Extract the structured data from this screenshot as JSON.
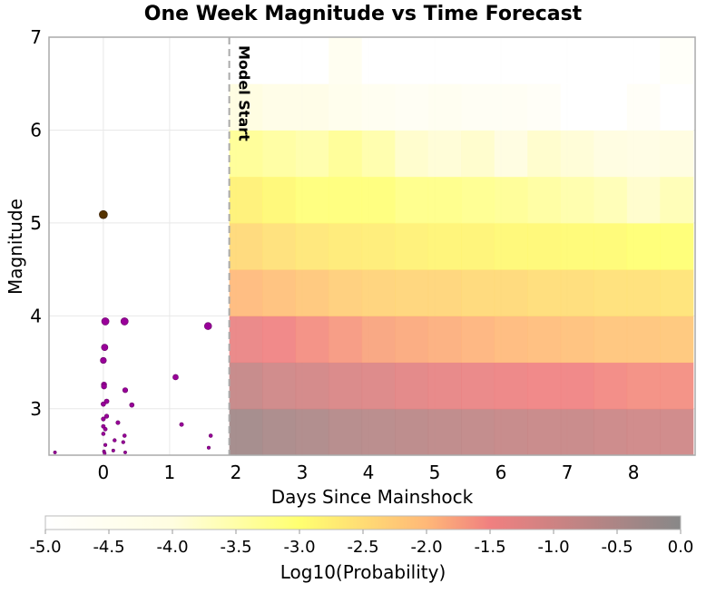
{
  "chart_data": {
    "type": "heatmap",
    "title": "One Week Magnitude vs Time Forecast",
    "xlabel": "Days Since Mainshock",
    "ylabel": "Magnitude",
    "xlim": [
      -0.82,
      8.93
    ],
    "ylim": [
      2.5,
      7
    ],
    "xticks": [
      "0",
      "1",
      "2",
      "3",
      "4",
      "5",
      "6",
      "7",
      "8"
    ],
    "yticks": [
      "3",
      "4",
      "5",
      "6",
      "7"
    ],
    "grid": true,
    "annotation": {
      "label": "Model Start",
      "x": 1.9
    },
    "heatmap": {
      "x_start": 1.9,
      "x_bin_width": 0.5,
      "mag_bins": [
        2.5,
        3.0,
        3.5,
        4.0,
        4.5,
        5.0,
        5.5,
        6.0,
        6.5
      ],
      "mag_bin_width": 0.5,
      "log10_probability": [
        [
          -0.35,
          -0.45,
          -0.5,
          -0.6,
          -0.65,
          -0.7,
          -0.75,
          -0.8,
          -0.85,
          -0.88,
          -0.9,
          -0.95,
          -1.0,
          -1.0
        ],
        [
          -0.85,
          -1.0,
          -1.05,
          -1.15,
          -1.2,
          -1.3,
          -1.35,
          -1.4,
          -1.45,
          -1.5,
          -1.5,
          -1.55,
          -1.6,
          -1.6
        ],
        [
          -1.4,
          -1.5,
          -1.6,
          -1.7,
          -1.8,
          -1.85,
          -1.9,
          -1.95,
          -2.0,
          -2.05,
          -2.1,
          -2.15,
          -2.15,
          -2.2
        ],
        [
          -2.0,
          -2.1,
          -2.2,
          -2.3,
          -2.35,
          -2.4,
          -2.4,
          -2.45,
          -2.45,
          -2.5,
          -2.5,
          -2.55,
          -2.55,
          -2.6
        ],
        [
          -2.45,
          -2.55,
          -2.65,
          -2.7,
          -2.75,
          -2.8,
          -2.85,
          -2.85,
          -2.9,
          -2.9,
          -2.95,
          -2.95,
          -3.0,
          -3.0
        ],
        [
          -2.8,
          -2.9,
          -3.05,
          -3.05,
          -3.05,
          -3.2,
          -3.2,
          -3.25,
          -3.3,
          -3.4,
          -3.5,
          -3.6,
          -3.8,
          -3.6
        ],
        [
          -3.3,
          -3.4,
          -3.5,
          -3.3,
          -3.5,
          -3.8,
          -3.9,
          -3.8,
          -4.0,
          -3.8,
          -3.9,
          -4.0,
          -4.1,
          -4.0
        ],
        [
          -4.0,
          -4.2,
          -4.2,
          -4.4,
          -4.5,
          -4.6,
          -4.5,
          -4.6,
          -4.6,
          -4.7,
          -5.0,
          -5.0,
          -4.7,
          -5.0
        ],
        [
          -5.0,
          -5.0,
          -5.0,
          -4.5,
          -5.0,
          -5.0,
          -5.0,
          -5.0,
          -5.0,
          -5.0,
          -5.0,
          -5.0,
          -5.0,
          -4.8
        ]
      ]
    },
    "mainshock": {
      "x": 0.0,
      "y": 5.09,
      "color": "#553300"
    },
    "aftershocks": {
      "color": "#990099",
      "points": [
        [
          0.03,
          3.94
        ],
        [
          0.32,
          3.94
        ],
        [
          1.58,
          3.89
        ],
        [
          0.02,
          3.66
        ],
        [
          0.0,
          3.52
        ],
        [
          1.09,
          3.34
        ],
        [
          0.01,
          3.26
        ],
        [
          0.01,
          3.24
        ],
        [
          0.33,
          3.2
        ],
        [
          0.05,
          3.08
        ],
        [
          0.0,
          3.05
        ],
        [
          0.43,
          3.04
        ],
        [
          0.05,
          2.92
        ],
        [
          0.0,
          2.89
        ],
        [
          0.22,
          2.85
        ],
        [
          1.18,
          2.83
        ],
        [
          0.0,
          2.81
        ],
        [
          0.03,
          2.78
        ],
        [
          0.0,
          2.73
        ],
        [
          0.32,
          2.71
        ],
        [
          1.62,
          2.71
        ],
        [
          0.17,
          2.66
        ],
        [
          0.3,
          2.64
        ],
        [
          0.03,
          2.61
        ],
        [
          1.59,
          2.58
        ],
        [
          0.15,
          2.55
        ],
        [
          0.01,
          2.54
        ],
        [
          0.33,
          2.53
        ],
        [
          -0.73,
          2.53
        ],
        [
          0.02,
          2.52
        ]
      ]
    },
    "colorbar": {
      "label": "Log10(Probability)",
      "range": [
        -5.0,
        0.0
      ],
      "ticks": [
        "-5.0",
        "-4.5",
        "-4.0",
        "-3.5",
        "-3.0",
        "-2.5",
        "-2.0",
        "-1.5",
        "-1.0",
        "-0.5",
        "0.0"
      ],
      "stops": [
        [
          -5.0,
          "#ffffff"
        ],
        [
          -4.0,
          "#fffde0"
        ],
        [
          -3.0,
          "#ffff70"
        ],
        [
          -2.0,
          "#ffb878"
        ],
        [
          -1.5,
          "#f08080"
        ],
        [
          0.0,
          "#888888"
        ]
      ]
    }
  }
}
